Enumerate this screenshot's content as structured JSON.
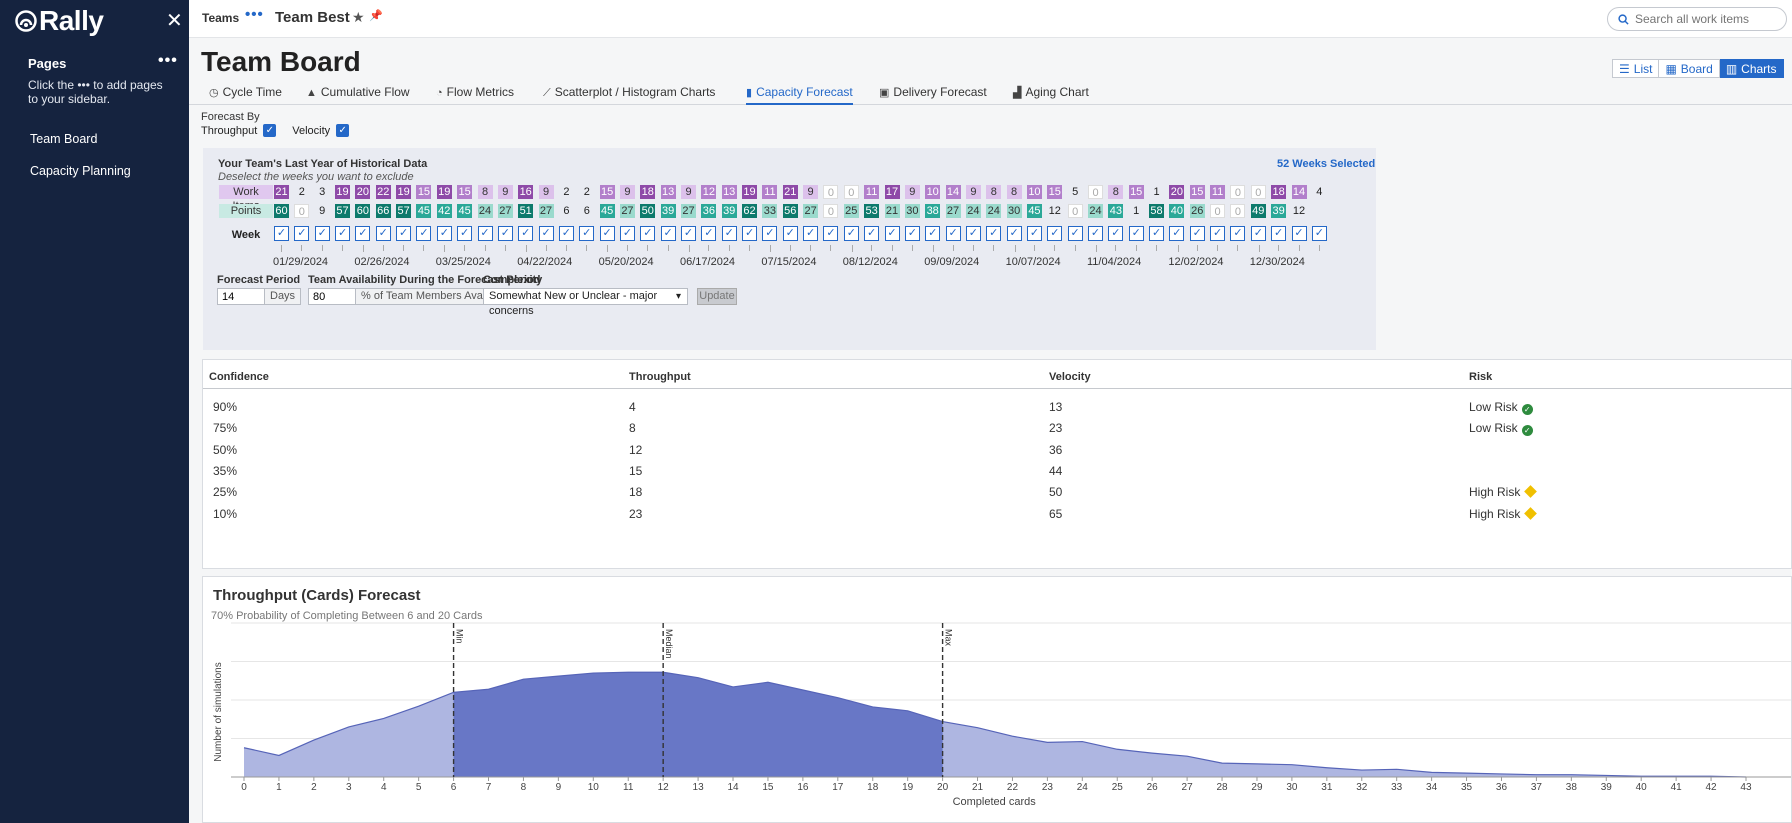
{
  "sidebar": {
    "logo": "Rally",
    "pages_title": "Pages",
    "hint": "Click the ••• to add pages to your sidebar.",
    "items": [
      {
        "label": "Team Board"
      },
      {
        "label": "Capacity Planning"
      }
    ]
  },
  "topbar": {
    "crumb_teams": "Teams",
    "crumb_team": "Team Best",
    "search_placeholder": "Search all work items"
  },
  "page": {
    "title": "Team Board"
  },
  "views": {
    "list": "List",
    "board": "Board",
    "charts": "Charts"
  },
  "tabs": [
    {
      "label": "Cycle Time",
      "icon": "clock-icon"
    },
    {
      "label": "Cumulative Flow",
      "icon": "area-chart-icon"
    },
    {
      "label": "Flow Metrics",
      "icon": "pie-icon"
    },
    {
      "label": "Scatterplot / Histogram Charts",
      "icon": "scatter-icon"
    },
    {
      "label": "Capacity Forecast",
      "icon": "bar-chart-icon"
    },
    {
      "label": "Delivery Forecast",
      "icon": "calendar-icon"
    },
    {
      "label": "Aging Chart",
      "icon": "aging-icon"
    }
  ],
  "forecast_by": {
    "label": "Forecast By",
    "throughput": "Throughput",
    "velocity": "Velocity"
  },
  "history": {
    "title": "Your Team's Last Year of Historical Data",
    "subtitle": "Deselect the weeks you want to exclude",
    "weeks_selected": "52 Weeks Selected",
    "row_work_items": "Work Items",
    "row_points": "Points",
    "row_week": "Week",
    "work_items": [
      21,
      2,
      3,
      19,
      20,
      22,
      19,
      15,
      19,
      15,
      8,
      9,
      16,
      9,
      2,
      2,
      15,
      9,
      18,
      13,
      9,
      12,
      13,
      19,
      11,
      21,
      9,
      0,
      0,
      11,
      17,
      9,
      10,
      14,
      9,
      8,
      8,
      10,
      15,
      5,
      0,
      8,
      15,
      1,
      20,
      15,
      11,
      0,
      0,
      18,
      14,
      4
    ],
    "points": [
      60,
      0,
      9,
      57,
      60,
      66,
      57,
      45,
      42,
      45,
      24,
      27,
      51,
      27,
      6,
      6,
      45,
      27,
      50,
      39,
      27,
      36,
      39,
      62,
      33,
      56,
      27,
      0,
      25,
      53,
      21,
      30,
      38,
      27,
      24,
      24,
      30,
      45,
      12,
      0,
      24,
      43,
      1,
      58,
      40,
      26,
      0,
      0,
      49,
      39,
      12,
      null
    ],
    "dates": [
      "01/29/2024",
      "02/26/2024",
      "03/25/2024",
      "04/22/2024",
      "05/20/2024",
      "06/17/2024",
      "07/15/2024",
      "08/12/2024",
      "09/09/2024",
      "10/07/2024",
      "11/04/2024",
      "12/02/2024",
      "12/30/2024"
    ],
    "colors": {
      "wi_dark": "#8e4aa8",
      "wi_mid": "#b27fcb",
      "wi_light": "#dcc1eb",
      "pt_dark": "#0d7a6c",
      "pt_mid": "#2ba898",
      "pt_light": "#9adacd"
    }
  },
  "controls": {
    "period_label": "Forecast Period",
    "period_value": "14",
    "period_unit": "Days",
    "avail_label": "Team Availability During the Forecast Period",
    "avail_value": "80",
    "avail_unit": "% of Team Members Available",
    "complexity_label": "Complexity",
    "complexity_value": "Somewhat New or Unclear - major concerns",
    "update_label": "Update"
  },
  "table": {
    "headers": [
      "Confidence",
      "Throughput",
      "Velocity",
      "Risk"
    ],
    "rows": [
      {
        "confidence": "90%",
        "throughput": "4",
        "velocity": "13",
        "risk": "Low Risk",
        "level": "low"
      },
      {
        "confidence": "75%",
        "throughput": "8",
        "velocity": "23",
        "risk": "Low Risk",
        "level": "low"
      },
      {
        "confidence": "50%",
        "throughput": "12",
        "velocity": "36",
        "risk": "",
        "level": "none"
      },
      {
        "confidence": "35%",
        "throughput": "15",
        "velocity": "44",
        "risk": "",
        "level": "none"
      },
      {
        "confidence": "25%",
        "throughput": "18",
        "velocity": "50",
        "risk": "High Risk",
        "level": "high"
      },
      {
        "confidence": "10%",
        "throughput": "23",
        "velocity": "65",
        "risk": "High Risk",
        "level": "high"
      }
    ]
  },
  "chart": {
    "title": "Throughput (Cards) Forecast",
    "subtitle": "70% Probability of Completing Between 6 and 20 Cards"
  },
  "chart_data": {
    "type": "area",
    "xlabel": "Completed cards",
    "ylabel": "Number of simulations",
    "x": [
      0,
      1,
      2,
      3,
      4,
      5,
      6,
      7,
      8,
      9,
      10,
      11,
      12,
      13,
      14,
      15,
      16,
      17,
      18,
      19,
      20,
      21,
      22,
      23,
      24,
      25,
      26,
      27,
      28,
      29,
      30,
      31,
      32,
      33,
      34,
      35,
      36,
      37,
      38,
      39,
      40,
      41,
      42,
      43
    ],
    "y": [
      38,
      28,
      48,
      65,
      76,
      92,
      110,
      114,
      127,
      131,
      135,
      136,
      136,
      129,
      117,
      123,
      113,
      103,
      91,
      86,
      72,
      64,
      53,
      45,
      46,
      36,
      31,
      27,
      18,
      17,
      16,
      12,
      9,
      10,
      6,
      5,
      4,
      3,
      3,
      2,
      1,
      1,
      1,
      0
    ],
    "ylim": [
      0,
      200
    ],
    "colors": {
      "dark": "#6877c6",
      "light": "#aeb6e1"
    },
    "markers": [
      {
        "label": "Min",
        "x": 6
      },
      {
        "label": "Median",
        "x": 12
      },
      {
        "label": "Max",
        "x": 20
      }
    ]
  }
}
